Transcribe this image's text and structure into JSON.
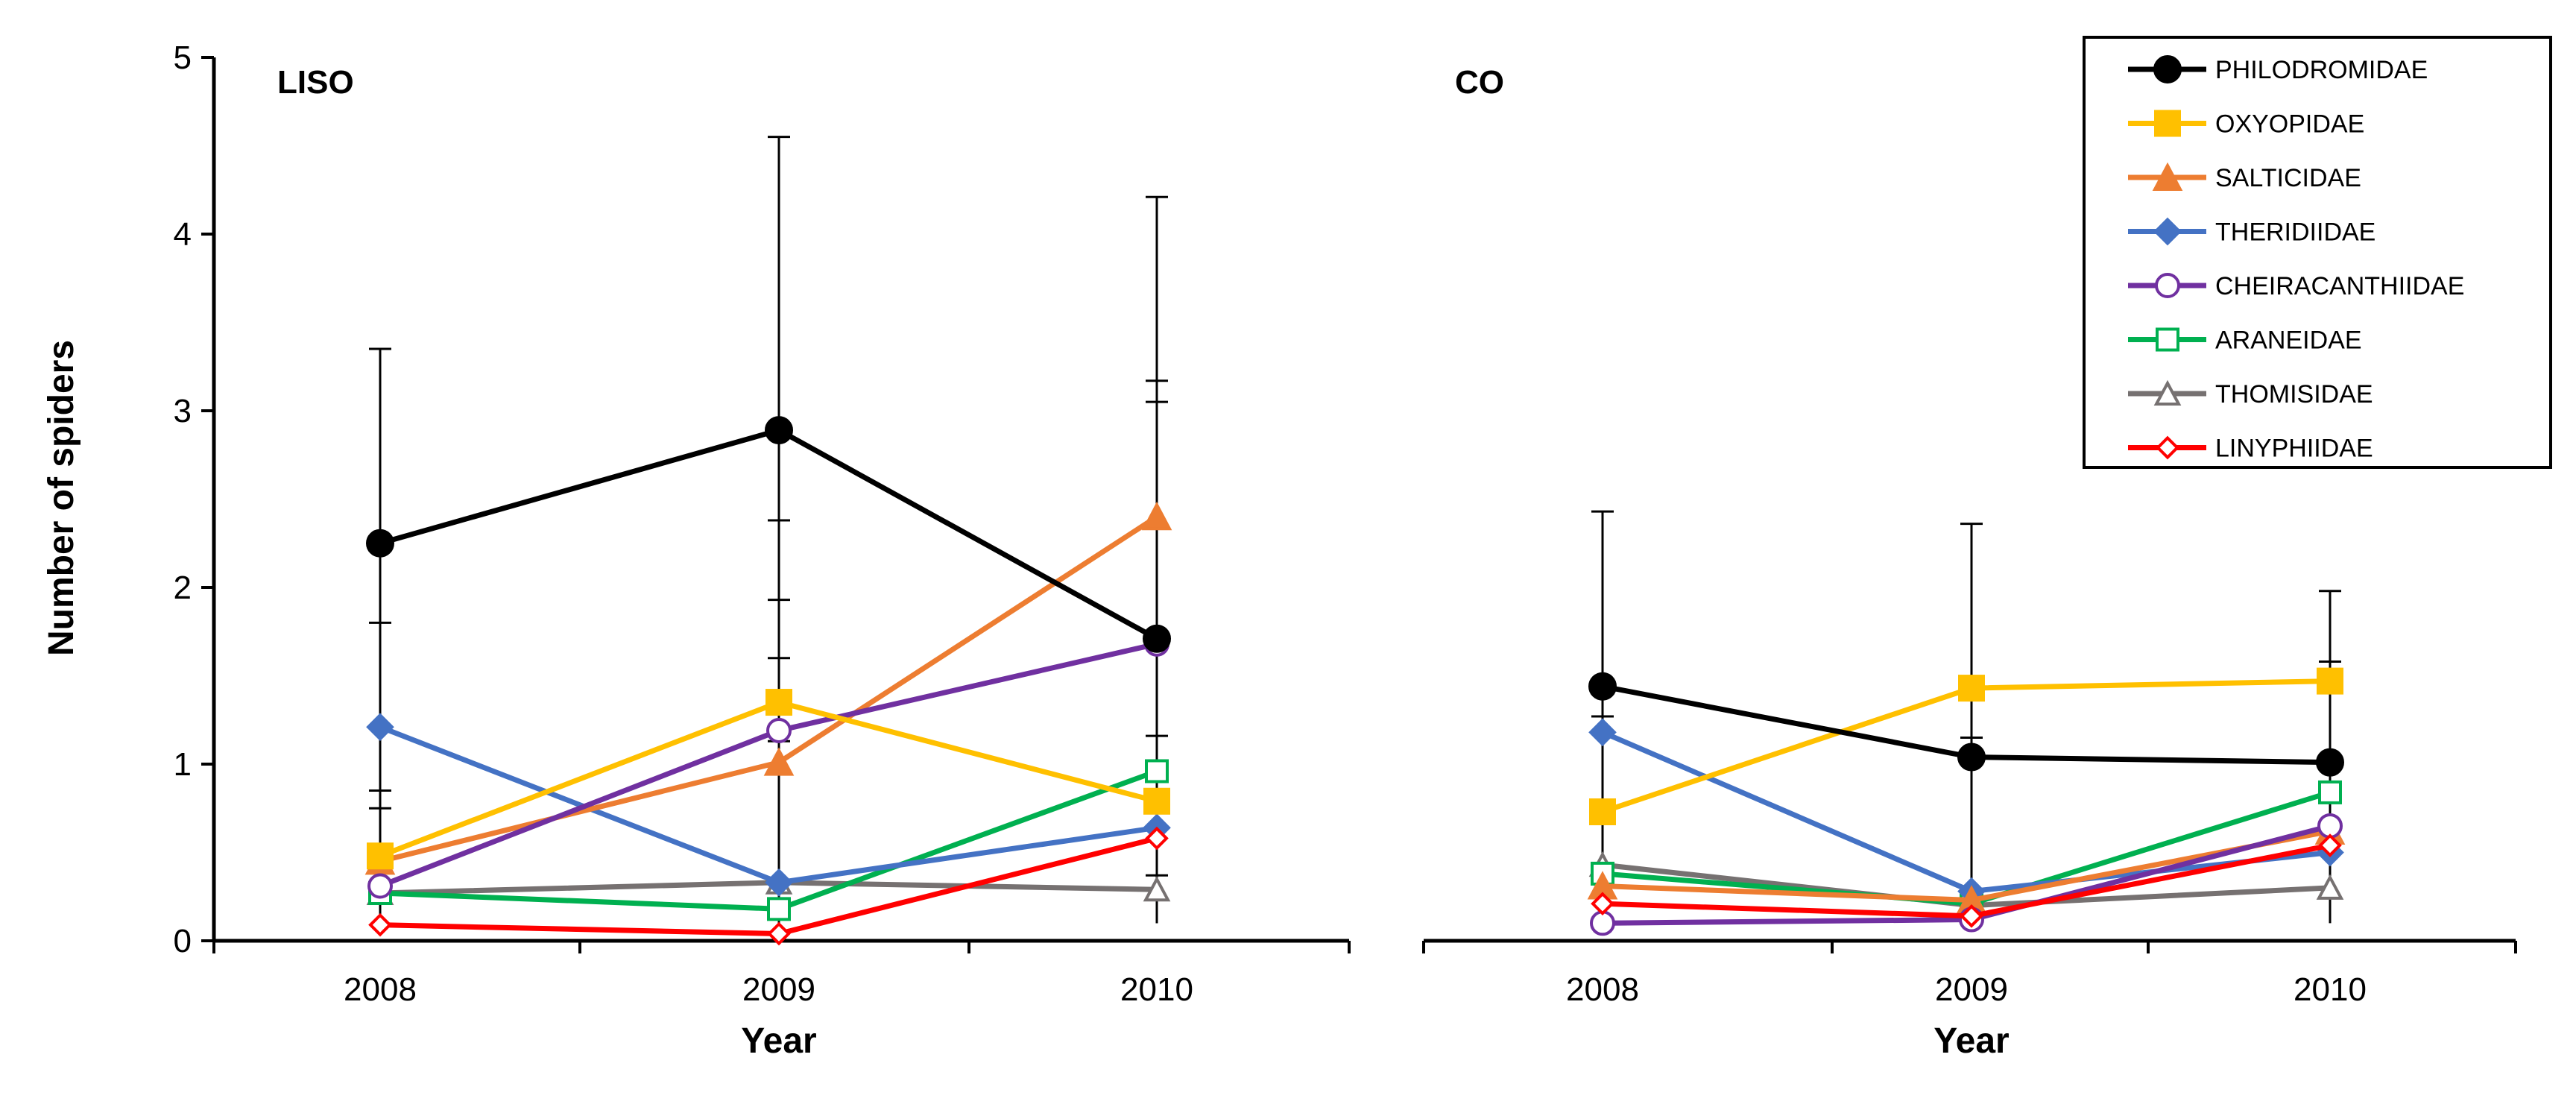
{
  "chart_data": {
    "type": "line",
    "ylabel": "Number of spiders",
    "xlabel": "Year",
    "categories": [
      "2008",
      "2009",
      "2010"
    ],
    "ylim": [
      0,
      5
    ],
    "yticks": [
      "0",
      "1",
      "2",
      "3",
      "4",
      "5"
    ],
    "legend_position": "top-right",
    "grid": false,
    "legend": [
      {
        "name": "PHILODROMIDAE",
        "color": "#000000",
        "marker": "circle-filled"
      },
      {
        "name": "OXYOPIDAE",
        "color": "#FFC000",
        "marker": "square-filled"
      },
      {
        "name": "SALTICIDAE",
        "color": "#ED7D31",
        "marker": "triangle-filled"
      },
      {
        "name": "THERIDIIDAE",
        "color": "#4472C4",
        "marker": "diamond-filled"
      },
      {
        "name": "CHEIRACANTHIIDAE",
        "color": "#7030A0",
        "marker": "circle-open"
      },
      {
        "name": "ARANEIDAE",
        "color": "#00B050",
        "marker": "square-open"
      },
      {
        "name": "THOMISIDAE",
        "color": "#767171",
        "marker": "triangle-open"
      },
      {
        "name": "LINYPHIIDAE",
        "color": "#FF0000",
        "marker": "diamond-open"
      }
    ],
    "panels": [
      {
        "label": "LISO",
        "series": [
          {
            "name": "THOMISIDAE",
            "values": [
              0.27,
              0.33,
              0.29
            ]
          },
          {
            "name": "ARANEIDAE",
            "values": [
              0.27,
              0.18,
              0.96
            ]
          },
          {
            "name": "THERIDIIDAE",
            "values": [
              1.21,
              0.33,
              0.64
            ]
          },
          {
            "name": "LINYPHIIDAE",
            "values": [
              0.09,
              0.04,
              0.58
            ]
          },
          {
            "name": "SALTICIDAE",
            "values": [
              0.45,
              1.01,
              2.4
            ]
          },
          {
            "name": "CHEIRACANTHIIDAE",
            "values": [
              0.31,
              1.19,
              1.68
            ]
          },
          {
            "name": "OXYOPIDAE",
            "values": [
              0.48,
              1.35,
              0.79
            ]
          },
          {
            "name": "PHILODROMIDAE",
            "values": [
              2.25,
              2.89,
              1.71
            ]
          }
        ],
        "error_tops": [
          3.35,
          4.55,
          4.21,
          1.8,
          2.38,
          3.17,
          0.85,
          1.93,
          3.05,
          0.75,
          1.6,
          1.16,
          0.4,
          1.13,
          0.37
        ]
      },
      {
        "label": "CO",
        "series": [
          {
            "name": "THOMISIDAE",
            "values": [
              0.43,
              0.2,
              0.3
            ]
          },
          {
            "name": "ARANEIDAE",
            "values": [
              0.38,
              0.21,
              0.84
            ]
          },
          {
            "name": "THERIDIIDAE",
            "values": [
              1.18,
              0.28,
              0.5
            ]
          },
          {
            "name": "SALTICIDAE",
            "values": [
              0.31,
              0.23,
              0.62
            ]
          },
          {
            "name": "CHEIRACANTHIIDAE",
            "values": [
              0.1,
              0.12,
              0.65
            ]
          },
          {
            "name": "LINYPHIIDAE",
            "values": [
              0.21,
              0.14,
              0.54
            ]
          },
          {
            "name": "OXYOPIDAE",
            "values": [
              0.73,
              1.43,
              1.47
            ]
          },
          {
            "name": "PHILODROMIDAE",
            "values": [
              1.44,
              1.04,
              1.01
            ]
          }
        ],
        "error_tops": [
          2.43,
          2.36,
          1.98,
          1.27,
          1.15,
          1.58,
          0.41
        ]
      }
    ]
  }
}
